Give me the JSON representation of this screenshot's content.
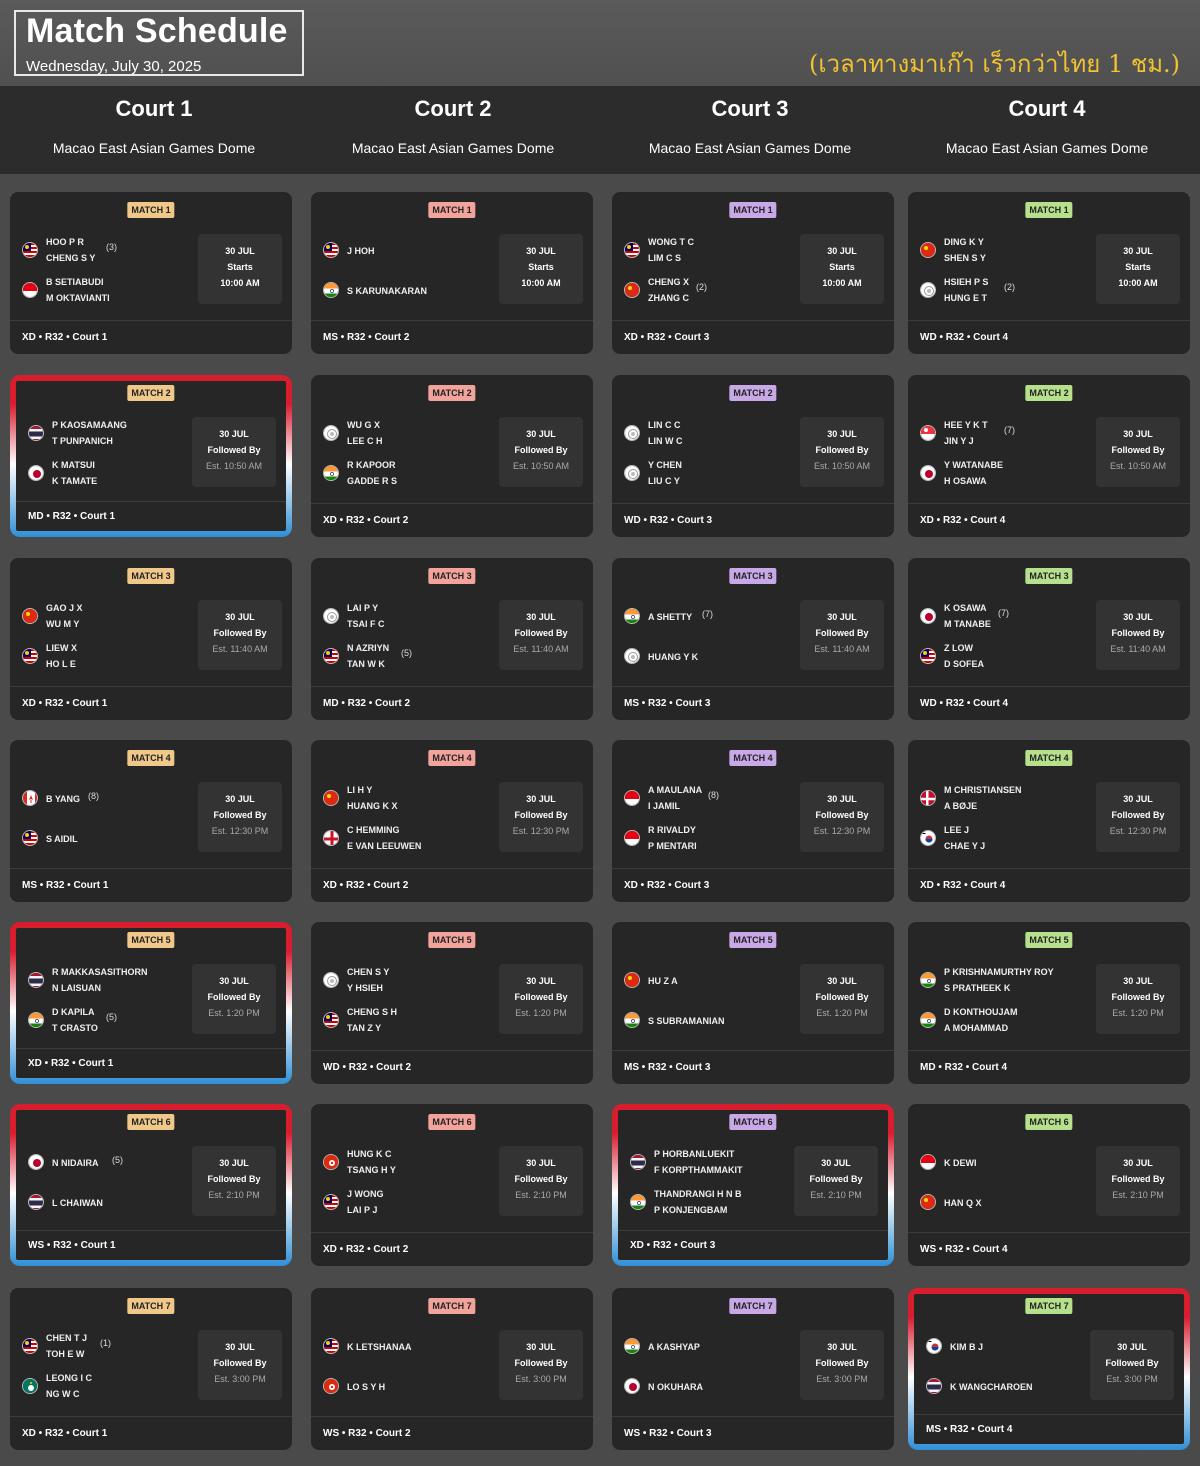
{
  "header": {
    "title": "Match Schedule",
    "date": "Wednesday, July 30, 2025",
    "note_thai": "(เวลาทางมาเก๊า เร็วกว่าไทย 1 ชม.)"
  },
  "colors": {
    "badge_court1": "#f0c98a",
    "badge_court2": "#f1a39c",
    "badge_court3": "#c9a8e8",
    "badge_court4": "#b7e08c",
    "highlight_top": "#d81d2e",
    "highlight_bottom": "#2f8fd6",
    "thai_note": "#f2c230"
  },
  "courts": [
    {
      "name": "Court 1",
      "venue": "Macao East Asian Games Dome"
    },
    {
      "name": "Court 2",
      "venue": "Macao East Asian Games Dome"
    },
    {
      "name": "Court 3",
      "venue": "Macao East Asian Games Dome"
    },
    {
      "name": "Court 4",
      "venue": "Macao East Asian Games Dome"
    }
  ],
  "matches": [
    [
      {
        "match": "MATCH 1",
        "highlight": false,
        "sides": [
          {
            "flag": "malaysia",
            "names": [
              "HOO P R",
              "CHENG S Y"
            ],
            "seed": "(3)"
          },
          {
            "flag": "indonesia",
            "names": [
              "B SETIABUDI",
              "M OKTAVIANTI"
            ],
            "seed": ""
          }
        ],
        "date": "30 JUL",
        "status": "Starts",
        "time": "10:00 AM",
        "footer": "XD • R32 • Court 1"
      },
      {
        "match": "MATCH 2",
        "highlight": true,
        "sides": [
          {
            "flag": "thailand",
            "names": [
              "P KAOSAMAANG",
              "T PUNPANICH"
            ],
            "seed": ""
          },
          {
            "flag": "japan",
            "names": [
              "K MATSUI",
              "K TAMATE"
            ],
            "seed": ""
          }
        ],
        "date": "30 JUL",
        "status": "Followed By",
        "time": "Est. 10:50 AM",
        "footer": "MD • R32 • Court 1"
      },
      {
        "match": "MATCH 3",
        "highlight": false,
        "sides": [
          {
            "flag": "china",
            "names": [
              "GAO J X",
              "WU M Y"
            ],
            "seed": ""
          },
          {
            "flag": "malaysia",
            "names": [
              "LIEW X",
              "HO L E"
            ],
            "seed": ""
          }
        ],
        "date": "30 JUL",
        "status": "Followed By",
        "time": "Est. 11:40 AM",
        "footer": "XD • R32 • Court 1"
      },
      {
        "match": "MATCH 4",
        "highlight": false,
        "sides": [
          {
            "flag": "canada",
            "names": [
              "B YANG"
            ],
            "seed": "(8)"
          },
          {
            "flag": "malaysia",
            "names": [
              "S AIDIL"
            ],
            "seed": ""
          }
        ],
        "date": "30 JUL",
        "status": "Followed By",
        "time": "Est. 12:30 PM",
        "footer": "MS • R32 • Court 1"
      },
      {
        "match": "MATCH 5",
        "highlight": true,
        "sides": [
          {
            "flag": "thailand",
            "names": [
              "R MAKKASASITHORN",
              "N LAISUAN"
            ],
            "seed": ""
          },
          {
            "flag": "india",
            "names": [
              "D KAPILA",
              "T CRASTO"
            ],
            "seed": "(5)"
          }
        ],
        "date": "30 JUL",
        "status": "Followed By",
        "time": "Est. 1:20 PM",
        "footer": "XD • R32 • Court 1"
      },
      {
        "match": "MATCH 6",
        "highlight": true,
        "sides": [
          {
            "flag": "japan",
            "names": [
              "N NIDAIRA"
            ],
            "seed": "(5)"
          },
          {
            "flag": "thailand",
            "names": [
              "L CHAIWAN"
            ],
            "seed": ""
          }
        ],
        "date": "30 JUL",
        "status": "Followed By",
        "time": "Est. 2:10 PM",
        "footer": "WS • R32 • Court 1"
      },
      {
        "match": "MATCH 7",
        "highlight": false,
        "sides": [
          {
            "flag": "malaysia",
            "names": [
              "CHEN T J",
              "TOH E W"
            ],
            "seed": "(1)"
          },
          {
            "flag": "macau",
            "names": [
              "LEONG I C",
              "NG W C"
            ],
            "seed": ""
          }
        ],
        "date": "30 JUL",
        "status": "Followed By",
        "time": "Est. 3:00 PM",
        "footer": "XD • R32 • Court 1"
      }
    ],
    [
      {
        "match": "MATCH 1",
        "highlight": false,
        "sides": [
          {
            "flag": "malaysia",
            "names": [
              "J HOH"
            ],
            "seed": ""
          },
          {
            "flag": "india",
            "names": [
              "S KARUNAKARAN"
            ],
            "seed": ""
          }
        ],
        "date": "30 JUL",
        "status": "Starts",
        "time": "10:00 AM",
        "footer": "MS • R32 • Court 2"
      },
      {
        "match": "MATCH 2",
        "highlight": false,
        "sides": [
          {
            "flag": "taipei",
            "names": [
              "WU G X",
              "LEE C H"
            ],
            "seed": ""
          },
          {
            "flag": "india",
            "names": [
              "R KAPOOR",
              "GADDE R S"
            ],
            "seed": ""
          }
        ],
        "date": "30 JUL",
        "status": "Followed By",
        "time": "Est. 10:50 AM",
        "footer": "XD • R32 • Court 2"
      },
      {
        "match": "MATCH 3",
        "highlight": false,
        "sides": [
          {
            "flag": "taipei",
            "names": [
              "LAI P Y",
              "TSAI F C"
            ],
            "seed": ""
          },
          {
            "flag": "malaysia",
            "names": [
              "N AZRIYN",
              "TAN W K"
            ],
            "seed": "(5)"
          }
        ],
        "date": "30 JUL",
        "status": "Followed By",
        "time": "Est. 11:40 AM",
        "footer": "MD • R32 • Court 2"
      },
      {
        "match": "MATCH 4",
        "highlight": false,
        "sides": [
          {
            "flag": "china",
            "names": [
              "LI H Y",
              "HUANG K X"
            ],
            "seed": ""
          },
          {
            "flag": "england",
            "names": [
              "C HEMMING",
              "E VAN LEEUWEN"
            ],
            "seed": ""
          }
        ],
        "date": "30 JUL",
        "status": "Followed By",
        "time": "Est. 12:30 PM",
        "footer": "XD • R32 • Court 2"
      },
      {
        "match": "MATCH 5",
        "highlight": false,
        "sides": [
          {
            "flag": "taipei",
            "names": [
              "CHEN S Y",
              "Y HSIEH"
            ],
            "seed": ""
          },
          {
            "flag": "malaysia",
            "names": [
              "CHENG S H",
              "TAN Z Y"
            ],
            "seed": ""
          }
        ],
        "date": "30 JUL",
        "status": "Followed By",
        "time": "Est. 1:20 PM",
        "footer": "WD • R32 • Court 2"
      },
      {
        "match": "MATCH 6",
        "highlight": false,
        "sides": [
          {
            "flag": "hongkong",
            "names": [
              "HUNG K C",
              "TSANG H Y"
            ],
            "seed": ""
          },
          {
            "flag": "malaysia",
            "names": [
              "J WONG",
              "LAI P J"
            ],
            "seed": ""
          }
        ],
        "date": "30 JUL",
        "status": "Followed By",
        "time": "Est. 2:10 PM",
        "footer": "XD • R32 • Court 2"
      },
      {
        "match": "MATCH 7",
        "highlight": false,
        "sides": [
          {
            "flag": "malaysia",
            "names": [
              "K LETSHANAA"
            ],
            "seed": ""
          },
          {
            "flag": "hongkong",
            "names": [
              "LO S Y H"
            ],
            "seed": ""
          }
        ],
        "date": "30 JUL",
        "status": "Followed By",
        "time": "Est. 3:00 PM",
        "footer": "WS • R32 • Court 2"
      }
    ],
    [
      {
        "match": "MATCH 1",
        "highlight": false,
        "sides": [
          {
            "flag": "malaysia",
            "names": [
              "WONG T C",
              "LIM C S"
            ],
            "seed": ""
          },
          {
            "flag": "china",
            "names": [
              "CHENG X",
              "ZHANG C"
            ],
            "seed": "(2)"
          }
        ],
        "date": "30 JUL",
        "status": "Starts",
        "time": "10:00 AM",
        "footer": "XD • R32 • Court 3"
      },
      {
        "match": "MATCH 2",
        "highlight": false,
        "sides": [
          {
            "flag": "taipei",
            "names": [
              "LIN C C",
              "LIN W C"
            ],
            "seed": ""
          },
          {
            "flag": "taipei",
            "names": [
              "Y CHEN",
              "LIU C Y"
            ],
            "seed": ""
          }
        ],
        "date": "30 JUL",
        "status": "Followed By",
        "time": "Est. 10:50 AM",
        "footer": "WD • R32 • Court 3"
      },
      {
        "match": "MATCH 3",
        "highlight": false,
        "sides": [
          {
            "flag": "india",
            "names": [
              "A SHETTY"
            ],
            "seed": "(7)"
          },
          {
            "flag": "taipei",
            "names": [
              "HUANG Y K"
            ],
            "seed": ""
          }
        ],
        "date": "30 JUL",
        "status": "Followed By",
        "time": "Est. 11:40 AM",
        "footer": "MS • R32 • Court 3"
      },
      {
        "match": "MATCH 4",
        "highlight": false,
        "sides": [
          {
            "flag": "indonesia",
            "names": [
              "A MAULANA",
              "I JAMIL"
            ],
            "seed": "(8)"
          },
          {
            "flag": "indonesia",
            "names": [
              "R RIVALDY",
              "P MENTARI"
            ],
            "seed": ""
          }
        ],
        "date": "30 JUL",
        "status": "Followed By",
        "time": "Est. 12:30 PM",
        "footer": "XD • R32 • Court 3"
      },
      {
        "match": "MATCH 5",
        "highlight": false,
        "sides": [
          {
            "flag": "china",
            "names": [
              "HU Z A"
            ],
            "seed": ""
          },
          {
            "flag": "india",
            "names": [
              "S SUBRAMANIAN"
            ],
            "seed": ""
          }
        ],
        "date": "30 JUL",
        "status": "Followed By",
        "time": "Est. 1:20 PM",
        "footer": "MS • R32 • Court 3"
      },
      {
        "match": "MATCH 6",
        "highlight": true,
        "sides": [
          {
            "flag": "thailand",
            "names": [
              "P HORBANLUEKIT",
              "F KORPTHAMMAKIT"
            ],
            "seed": ""
          },
          {
            "flag": "india",
            "names": [
              "THANDRANGI H N B",
              "P KONJENGBAM"
            ],
            "seed": ""
          }
        ],
        "date": "30 JUL",
        "status": "Followed By",
        "time": "Est. 2:10 PM",
        "footer": "XD • R32 • Court 3"
      },
      {
        "match": "MATCH 7",
        "highlight": false,
        "sides": [
          {
            "flag": "india",
            "names": [
              "A KASHYAP"
            ],
            "seed": ""
          },
          {
            "flag": "japan",
            "names": [
              "N OKUHARA"
            ],
            "seed": ""
          }
        ],
        "date": "30 JUL",
        "status": "Followed By",
        "time": "Est. 3:00 PM",
        "footer": "WS • R32 • Court 3"
      }
    ],
    [
      {
        "match": "MATCH 1",
        "highlight": false,
        "sides": [
          {
            "flag": "china",
            "names": [
              "DING K Y",
              "SHEN S Y"
            ],
            "seed": ""
          },
          {
            "flag": "taipei",
            "names": [
              "HSIEH P S",
              "HUNG E T"
            ],
            "seed": "(2)"
          }
        ],
        "date": "30 JUL",
        "status": "Starts",
        "time": "10:00 AM",
        "footer": "WD • R32 • Court 4"
      },
      {
        "match": "MATCH 2",
        "highlight": false,
        "sides": [
          {
            "flag": "singapore",
            "names": [
              "HEE Y K T",
              "JIN Y J"
            ],
            "seed": "(7)"
          },
          {
            "flag": "japan",
            "names": [
              "Y WATANABE",
              "H OSAWA"
            ],
            "seed": ""
          }
        ],
        "date": "30 JUL",
        "status": "Followed By",
        "time": "Est. 10:50 AM",
        "footer": "XD • R32 • Court 4"
      },
      {
        "match": "MATCH 3",
        "highlight": false,
        "sides": [
          {
            "flag": "japan",
            "names": [
              "K OSAWA",
              "M TANABE"
            ],
            "seed": "(7)"
          },
          {
            "flag": "malaysia",
            "names": [
              "Z LOW",
              "D SOFEA"
            ],
            "seed": ""
          }
        ],
        "date": "30 JUL",
        "status": "Followed By",
        "time": "Est. 11:40 AM",
        "footer": "WD • R32 • Court 4"
      },
      {
        "match": "MATCH 4",
        "highlight": false,
        "sides": [
          {
            "flag": "denmark",
            "names": [
              "M CHRISTIANSEN",
              "A BØJE"
            ],
            "seed": ""
          },
          {
            "flag": "korea",
            "names": [
              "LEE J",
              "CHAE Y J"
            ],
            "seed": ""
          }
        ],
        "date": "30 JUL",
        "status": "Followed By",
        "time": "Est. 12:30 PM",
        "footer": "XD • R32 • Court 4"
      },
      {
        "match": "MATCH 5",
        "highlight": false,
        "sides": [
          {
            "flag": "india",
            "names": [
              "P KRISHNAMURTHY ROY",
              "S PRATHEEK K"
            ],
            "seed": ""
          },
          {
            "flag": "india",
            "names": [
              "D KONTHOUJAM",
              "A MOHAMMAD"
            ],
            "seed": ""
          }
        ],
        "date": "30 JUL",
        "status": "Followed By",
        "time": "Est. 1:20 PM",
        "footer": "MD • R32 • Court 4"
      },
      {
        "match": "MATCH 6",
        "highlight": false,
        "sides": [
          {
            "flag": "indonesia",
            "names": [
              "K DEWI"
            ],
            "seed": ""
          },
          {
            "flag": "china",
            "names": [
              "HAN Q X"
            ],
            "seed": ""
          }
        ],
        "date": "30 JUL",
        "status": "Followed By",
        "time": "Est. 2:10 PM",
        "footer": "WS • R32 • Court 4"
      },
      {
        "match": "MATCH 7",
        "highlight": true,
        "sides": [
          {
            "flag": "korea",
            "names": [
              "KIM B J"
            ],
            "seed": ""
          },
          {
            "flag": "thailand",
            "names": [
              "K WANGCHAROEN"
            ],
            "seed": ""
          }
        ],
        "date": "30 JUL",
        "status": "Followed By",
        "time": "Est. 3:00 PM",
        "footer": "MS • R32 • Court 4"
      }
    ]
  ]
}
